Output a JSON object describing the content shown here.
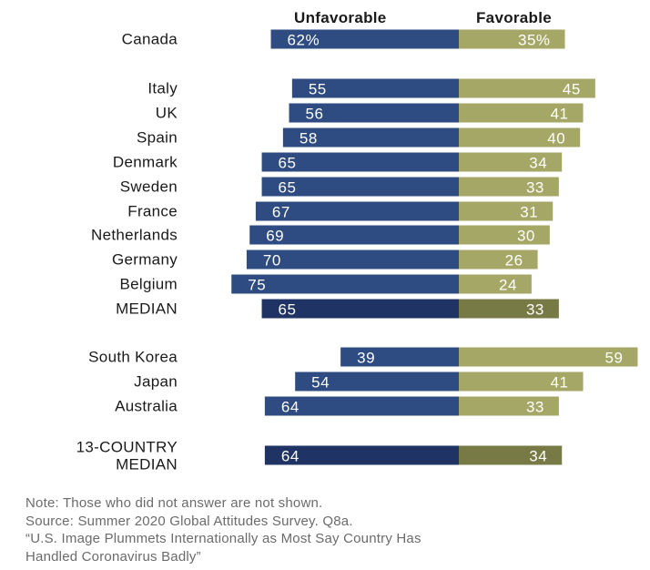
{
  "legend": {
    "unfavorable": "Unfavorable",
    "favorable": "Favorable"
  },
  "colors": {
    "unfavorable": "#2e4b82",
    "unfavorable_median": "#1f3464",
    "favorable": "#a5a766",
    "favorable_median": "#787a45",
    "value_text": "#ffffff"
  },
  "chart_data": {
    "type": "bar",
    "subtype": "diverging-horizontal",
    "series": [
      {
        "name": "Unfavorable",
        "values": [
          62,
          55,
          56,
          58,
          65,
          65,
          67,
          69,
          70,
          75,
          65,
          39,
          54,
          64,
          64
        ]
      },
      {
        "name": "Favorable",
        "values": [
          35,
          45,
          41,
          40,
          34,
          33,
          31,
          30,
          26,
          24,
          33,
          59,
          41,
          33,
          34
        ]
      }
    ],
    "categories": [
      "Canada",
      "Italy",
      "UK",
      "Spain",
      "Denmark",
      "Sweden",
      "France",
      "Netherlands",
      "Germany",
      "Belgium",
      "MEDIAN",
      "South Korea",
      "Japan",
      "Australia",
      "13-COUNTRY MEDIAN"
    ],
    "rows": [
      {
        "label": [
          "Canada"
        ],
        "unfav": 62,
        "fav": 35,
        "unfav_text": "62%",
        "fav_text": "35%"
      },
      {
        "label": [
          "Italy"
        ],
        "unfav": 55,
        "fav": 45,
        "unfav_text": "55",
        "fav_text": "45"
      },
      {
        "label": [
          "UK"
        ],
        "unfav": 56,
        "fav": 41,
        "unfav_text": "56",
        "fav_text": "41"
      },
      {
        "label": [
          "Spain"
        ],
        "unfav": 58,
        "fav": 40,
        "unfav_text": "58",
        "fav_text": "40"
      },
      {
        "label": [
          "Denmark"
        ],
        "unfav": 65,
        "fav": 34,
        "unfav_text": "65",
        "fav_text": "34"
      },
      {
        "label": [
          "Sweden"
        ],
        "unfav": 65,
        "fav": 33,
        "unfav_text": "65",
        "fav_text": "33"
      },
      {
        "label": [
          "France"
        ],
        "unfav": 67,
        "fav": 31,
        "unfav_text": "67",
        "fav_text": "31"
      },
      {
        "label": [
          "Netherlands"
        ],
        "unfav": 69,
        "fav": 30,
        "unfav_text": "69",
        "fav_text": "30"
      },
      {
        "label": [
          "Germany"
        ],
        "unfav": 70,
        "fav": 26,
        "unfav_text": "70",
        "fav_text": "26"
      },
      {
        "label": [
          "Belgium"
        ],
        "unfav": 75,
        "fav": 24,
        "unfav_text": "75",
        "fav_text": "24"
      },
      {
        "label": [
          "MEDIAN"
        ],
        "unfav": 65,
        "fav": 33,
        "unfav_text": "65",
        "fav_text": "33",
        "median": true
      },
      {
        "label": [
          "South Korea"
        ],
        "unfav": 39,
        "fav": 59,
        "unfav_text": "39",
        "fav_text": "59"
      },
      {
        "label": [
          "Japan"
        ],
        "unfav": 54,
        "fav": 41,
        "unfav_text": "54",
        "fav_text": "41"
      },
      {
        "label": [
          "Australia"
        ],
        "unfav": 64,
        "fav": 33,
        "unfav_text": "64",
        "fav_text": "33"
      },
      {
        "label": [
          "13-COUNTRY",
          "MEDIAN"
        ],
        "unfav": 64,
        "fav": 34,
        "unfav_text": "64",
        "fav_text": "34",
        "median": true
      }
    ]
  },
  "notes": [
    "Note: Those who did not answer are not shown.",
    "Source: Summer 2020 Global Attitudes Survey. Q8a.",
    "“U.S. Image Plummets Internationally as Most Say Country Has",
    "Handled Coronavirus Badly”"
  ]
}
